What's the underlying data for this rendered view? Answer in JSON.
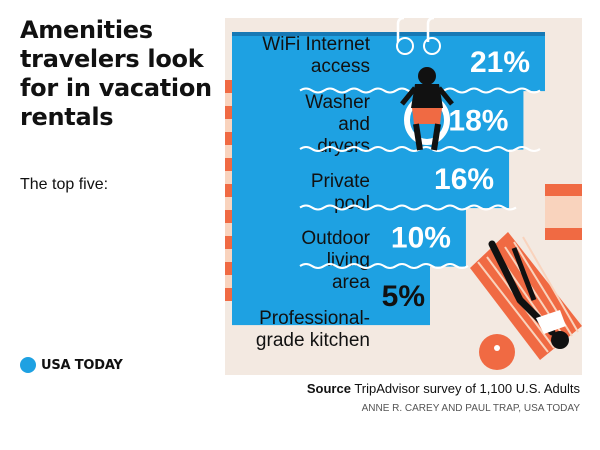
{
  "title": "Amenities travelers look for in vacation rentals",
  "subtitle": "The top five:",
  "logo": "USA TODAY",
  "source_label": "Source",
  "source_text": "TripAdvisor survey of 1,100 U.S. Adults",
  "credit": "ANNE R. CAREY AND PAUL TRAP, USA TODAY",
  "colors": {
    "background": "#f3e9e1",
    "pool": "#1ea1e2",
    "pool_dark": "#1779b5",
    "stripe_orange": "#f06a43",
    "stripe_light": "#f9d3bd",
    "text": "#111111"
  },
  "chart_data": {
    "type": "bar",
    "orientation": "horizontal",
    "categories": [
      [
        "WiFi Internet",
        "access"
      ],
      [
        "Washer",
        "and",
        "dryers"
      ],
      [
        "Private",
        "pool"
      ],
      [
        "Outdoor",
        "living",
        "area"
      ],
      [
        "Professional-",
        "grade kitchen"
      ]
    ],
    "values": [
      21,
      18,
      16,
      10,
      5
    ],
    "value_labels": [
      "21%",
      "18%",
      "16%",
      "10%",
      "5%"
    ],
    "xlim": [
      0,
      21
    ]
  }
}
